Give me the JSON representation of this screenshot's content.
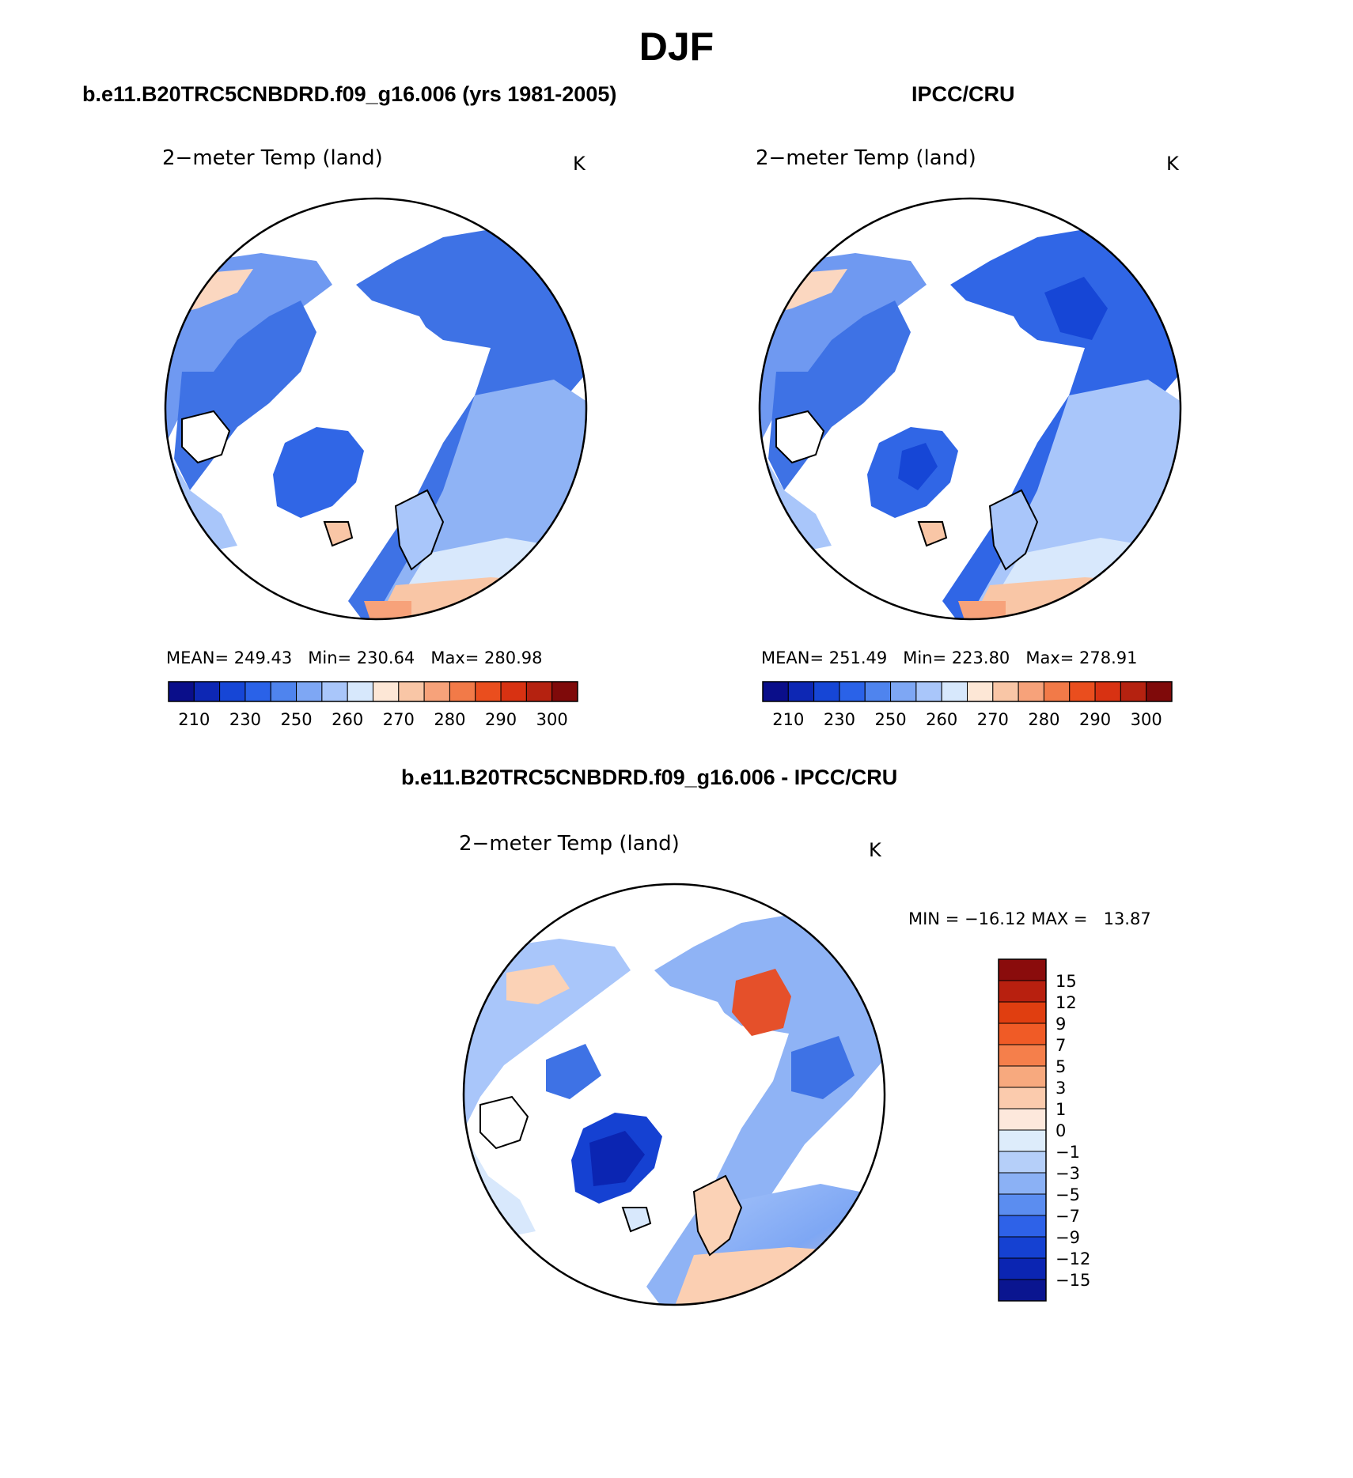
{
  "season": "DJF",
  "panel_titles": {
    "model": "b.e11.B20TRC5CNBDRD.f09_g16.006 (yrs 1981-2005)",
    "obs": "IPCC/CRU",
    "diff": "b.e11.B20TRC5CNBDRD.f09_g16.006 - IPCC/CRU"
  },
  "variable": "2−meter Temp (land)",
  "units": "K",
  "model_panel": {
    "mean_label": "MEAN=",
    "mean": "249.43",
    "min_label": "Min=",
    "min": "230.64",
    "max_label": "Max=",
    "max": "280.98"
  },
  "obs_panel": {
    "mean_label": "MEAN=",
    "mean": "251.49",
    "min_label": "Min=",
    "min": "223.80",
    "max_label": "Max=",
    "max": "278.91"
  },
  "diff_panel": {
    "min_label": "MIN =",
    "min": "−16.12",
    "max_label": "MAX =",
    "max": "13.87"
  },
  "abs_colorbar": {
    "colors": [
      "#0a0e8a",
      "#0d27b4",
      "#1646d6",
      "#2a62e8",
      "#4f84ee",
      "#7ea7f4",
      "#a9c6fa",
      "#d7e8fc",
      "#fde7d6",
      "#f9c6a6",
      "#f7a27a",
      "#f27a48",
      "#ea4e1e",
      "#d83212",
      "#b52210",
      "#7f0a0a"
    ],
    "tick_labels": [
      "210",
      "230",
      "250",
      "260",
      "270",
      "280",
      "290",
      "300"
    ]
  },
  "diff_colorbar": {
    "colors_top_to_bottom": [
      "#8a0c0c",
      "#b8200f",
      "#e03e10",
      "#f05b26",
      "#f57f4b",
      "#f7a97e",
      "#fbcbad",
      "#fde8dc",
      "#ddecfb",
      "#b5cff9",
      "#8bb1f5",
      "#5b8df0",
      "#2e62e8",
      "#1541d2",
      "#0b25b2",
      "#0a1590"
    ],
    "tick_labels": [
      "15",
      "12",
      "9",
      "7",
      "5",
      "3",
      "1",
      "0",
      "−1",
      "−3",
      "−5",
      "−7",
      "−9",
      "−12",
      "−15"
    ]
  }
}
